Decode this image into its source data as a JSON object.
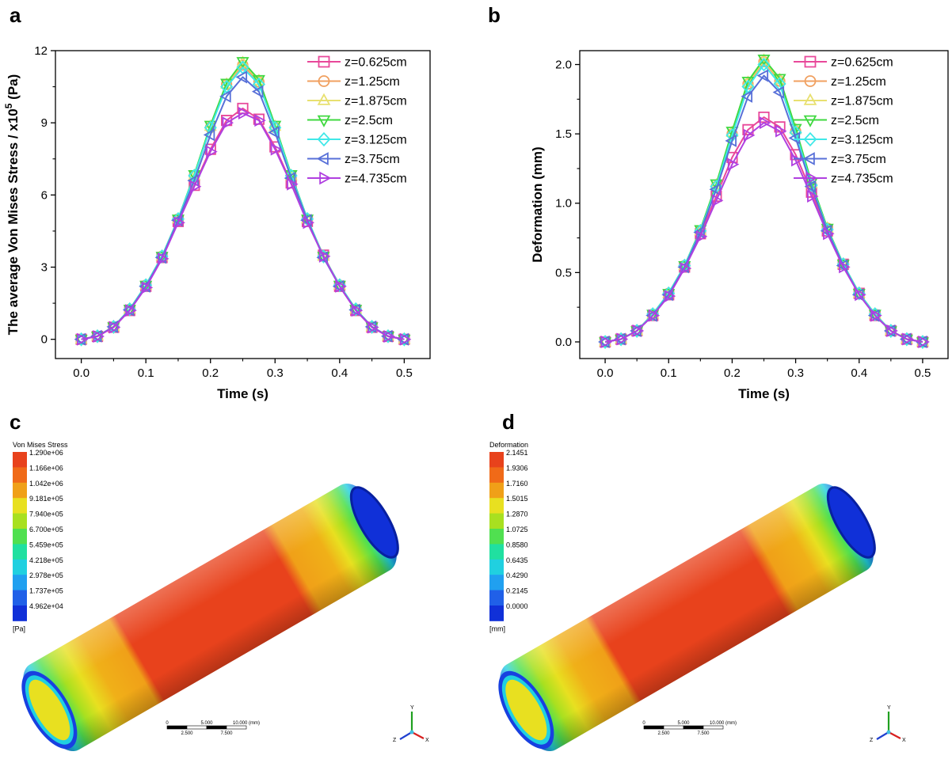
{
  "panels": {
    "a": "a",
    "b": "b",
    "c": "c",
    "d": "d"
  },
  "chart_data": [
    {
      "type": "line",
      "xlabel": "Time (s)",
      "ylabel": "The average Von Mises Stress / x10",
      "ylabel_sup": "5",
      "ylabel_unit": " (Pa)",
      "xlim": [
        -0.04,
        0.54
      ],
      "ylim": [
        -0.8,
        12
      ],
      "xticks": [
        0.0,
        0.1,
        0.2,
        0.3,
        0.4,
        0.5
      ],
      "xtick_labels": [
        "0.0",
        "0.1",
        "0.2",
        "0.3",
        "0.4",
        "0.5"
      ],
      "yticks": [
        0,
        3,
        6,
        9,
        12
      ],
      "ytick_labels": [
        "0",
        "3",
        "6",
        "9",
        "12"
      ],
      "legend_position": "top-right",
      "x": [
        0,
        0.025,
        0.05,
        0.075,
        0.1,
        0.125,
        0.15,
        0.175,
        0.2,
        0.225,
        0.25,
        0.275,
        0.3,
        0.325,
        0.35,
        0.375,
        0.4,
        0.425,
        0.45,
        0.475,
        0.5
      ],
      "series": [
        {
          "name": "z=0.625cm",
          "marker": "square",
          "color": "#e8489a",
          "values": [
            0,
            0.12,
            0.5,
            1.2,
            2.2,
            3.4,
            4.9,
            6.4,
            7.9,
            9.1,
            9.6,
            9.15,
            8.0,
            6.5,
            4.9,
            3.5,
            2.2,
            1.2,
            0.5,
            0.12,
            0
          ]
        },
        {
          "name": "z=1.25cm",
          "marker": "circle",
          "color": "#f0a060",
          "values": [
            0,
            0.13,
            0.52,
            1.25,
            2.25,
            3.45,
            5.0,
            6.8,
            8.8,
            10.6,
            11.4,
            10.7,
            8.8,
            6.8,
            5.0,
            3.45,
            2.25,
            1.25,
            0.52,
            0.13,
            0
          ]
        },
        {
          "name": "z=1.875cm",
          "marker": "triangle-up",
          "color": "#e8e070",
          "values": [
            0,
            0.13,
            0.52,
            1.25,
            2.25,
            3.45,
            5.0,
            6.8,
            8.85,
            10.6,
            11.5,
            10.75,
            8.85,
            6.8,
            5.0,
            3.45,
            2.25,
            1.25,
            0.52,
            0.13,
            0
          ]
        },
        {
          "name": "z=2.5cm",
          "marker": "triangle-down",
          "color": "#40d840",
          "values": [
            0,
            0.13,
            0.52,
            1.25,
            2.25,
            3.45,
            5.0,
            6.85,
            8.9,
            10.65,
            11.55,
            10.8,
            8.9,
            6.85,
            5.0,
            3.45,
            2.25,
            1.25,
            0.52,
            0.13,
            0
          ]
        },
        {
          "name": "z=3.125cm",
          "marker": "diamond",
          "color": "#40e8e8",
          "values": [
            0,
            0.13,
            0.52,
            1.25,
            2.25,
            3.45,
            5.0,
            6.8,
            8.8,
            10.5,
            11.3,
            10.6,
            8.8,
            6.8,
            5.0,
            3.45,
            2.25,
            1.25,
            0.52,
            0.13,
            0
          ]
        },
        {
          "name": "z=3.75cm",
          "marker": "triangle-left",
          "color": "#5870d8",
          "values": [
            0,
            0.13,
            0.52,
            1.22,
            2.2,
            3.4,
            4.95,
            6.6,
            8.5,
            10.1,
            10.9,
            10.3,
            8.6,
            6.7,
            4.95,
            3.4,
            2.2,
            1.22,
            0.52,
            0.13,
            0
          ]
        },
        {
          "name": "z=4.735cm",
          "marker": "triangle-right",
          "color": "#b040e0",
          "values": [
            0,
            0.12,
            0.5,
            1.2,
            2.15,
            3.35,
            4.85,
            6.35,
            7.8,
            9.0,
            9.4,
            9.1,
            7.9,
            6.45,
            4.85,
            3.45,
            2.2,
            1.2,
            0.5,
            0.12,
            0
          ]
        }
      ]
    },
    {
      "type": "line",
      "xlabel": "Time (s)",
      "ylabel": "Deformation (mm)",
      "xlim": [
        -0.04,
        0.54
      ],
      "ylim": [
        -0.12,
        2.1
      ],
      "xticks": [
        0.0,
        0.1,
        0.2,
        0.3,
        0.4,
        0.5
      ],
      "xtick_labels": [
        "0.0",
        "0.1",
        "0.2",
        "0.3",
        "0.4",
        "0.5"
      ],
      "yticks": [
        0,
        0.5,
        1.0,
        1.5,
        2.0
      ],
      "ytick_labels": [
        "0.0",
        "0.5",
        "1.0",
        "1.5",
        "2.0"
      ],
      "legend_position": "top-right",
      "x": [
        0,
        0.025,
        0.05,
        0.075,
        0.1,
        0.125,
        0.15,
        0.175,
        0.2,
        0.225,
        0.25,
        0.275,
        0.3,
        0.325,
        0.35,
        0.375,
        0.4,
        0.425,
        0.45,
        0.475,
        0.5
      ],
      "series": [
        {
          "name": "z=0.625cm",
          "marker": "square",
          "color": "#e8489a",
          "values": [
            0,
            0.02,
            0.08,
            0.19,
            0.34,
            0.54,
            0.78,
            1.05,
            1.33,
            1.53,
            1.62,
            1.55,
            1.35,
            1.08,
            0.8,
            0.56,
            0.35,
            0.19,
            0.08,
            0.02,
            0
          ]
        },
        {
          "name": "z=1.25cm",
          "marker": "circle",
          "color": "#f0a060",
          "values": [
            0,
            0.02,
            0.08,
            0.2,
            0.35,
            0.55,
            0.8,
            1.12,
            1.5,
            1.86,
            2.02,
            1.88,
            1.52,
            1.13,
            0.82,
            0.56,
            0.35,
            0.2,
            0.08,
            0.02,
            0
          ]
        },
        {
          "name": "z=1.875cm",
          "marker": "triangle-up",
          "color": "#e8e070",
          "values": [
            0,
            0.02,
            0.08,
            0.2,
            0.35,
            0.55,
            0.8,
            1.13,
            1.51,
            1.87,
            2.03,
            1.89,
            1.53,
            1.14,
            0.82,
            0.56,
            0.35,
            0.2,
            0.08,
            0.02,
            0
          ]
        },
        {
          "name": "z=2.5cm",
          "marker": "triangle-down",
          "color": "#40d840",
          "values": [
            0,
            0.02,
            0.08,
            0.2,
            0.35,
            0.55,
            0.81,
            1.14,
            1.52,
            1.88,
            2.04,
            1.9,
            1.54,
            1.15,
            0.82,
            0.56,
            0.35,
            0.2,
            0.08,
            0.02,
            0
          ]
        },
        {
          "name": "z=3.125cm",
          "marker": "diamond",
          "color": "#40e8e8",
          "values": [
            0,
            0.02,
            0.08,
            0.2,
            0.35,
            0.55,
            0.8,
            1.12,
            1.49,
            1.84,
            2.0,
            1.86,
            1.51,
            1.13,
            0.81,
            0.56,
            0.35,
            0.2,
            0.08,
            0.02,
            0
          ]
        },
        {
          "name": "z=3.75cm",
          "marker": "triangle-left",
          "color": "#5870d8",
          "values": [
            0,
            0.02,
            0.08,
            0.19,
            0.34,
            0.54,
            0.79,
            1.1,
            1.45,
            1.77,
            1.92,
            1.8,
            1.47,
            1.12,
            0.8,
            0.55,
            0.34,
            0.19,
            0.08,
            0.02,
            0
          ]
        },
        {
          "name": "z=4.735cm",
          "marker": "triangle-right",
          "color": "#b040e0",
          "values": [
            0,
            0.02,
            0.08,
            0.19,
            0.33,
            0.53,
            0.76,
            1.02,
            1.28,
            1.49,
            1.58,
            1.52,
            1.31,
            1.05,
            0.78,
            0.54,
            0.34,
            0.19,
            0.08,
            0.02,
            0
          ]
        }
      ]
    }
  ],
  "contour_c": {
    "title": "Von Mises Stress",
    "unit": "[Pa]",
    "labels": [
      "1.290e+06",
      "1.166e+06",
      "1.042e+06",
      "9.181e+05",
      "7.940e+05",
      "6.700e+05",
      "5.459e+05",
      "4.218e+05",
      "2.978e+05",
      "1.737e+05",
      "4.962e+04"
    ],
    "colors": [
      "#e8421c",
      "#f06a18",
      "#f0a018",
      "#e8e020",
      "#a8e020",
      "#50e050",
      "#20e0a0",
      "#20d0e0",
      "#20a0f0",
      "#2060e8",
      "#1030d8"
    ]
  },
  "contour_d": {
    "title": "Deformation",
    "unit": "[mm]",
    "labels": [
      "2.1451",
      "1.9306",
      "1.7160",
      "1.5015",
      "1.2870",
      "1.0725",
      "0.8580",
      "0.6435",
      "0.4290",
      "0.2145",
      "0.0000"
    ],
    "colors": [
      "#e8421c",
      "#f06a18",
      "#f0a018",
      "#e8e020",
      "#a8e020",
      "#50e050",
      "#20e0a0",
      "#20d0e0",
      "#20a0f0",
      "#2060e8",
      "#1030d8"
    ]
  },
  "scale_bar": {
    "top_labels": [
      "0",
      "5.000",
      "10.000 (mm)"
    ],
    "bottom_labels": [
      "2.500",
      "7.500"
    ]
  },
  "triad": {
    "x": "X",
    "y": "Y",
    "z": "Z"
  }
}
